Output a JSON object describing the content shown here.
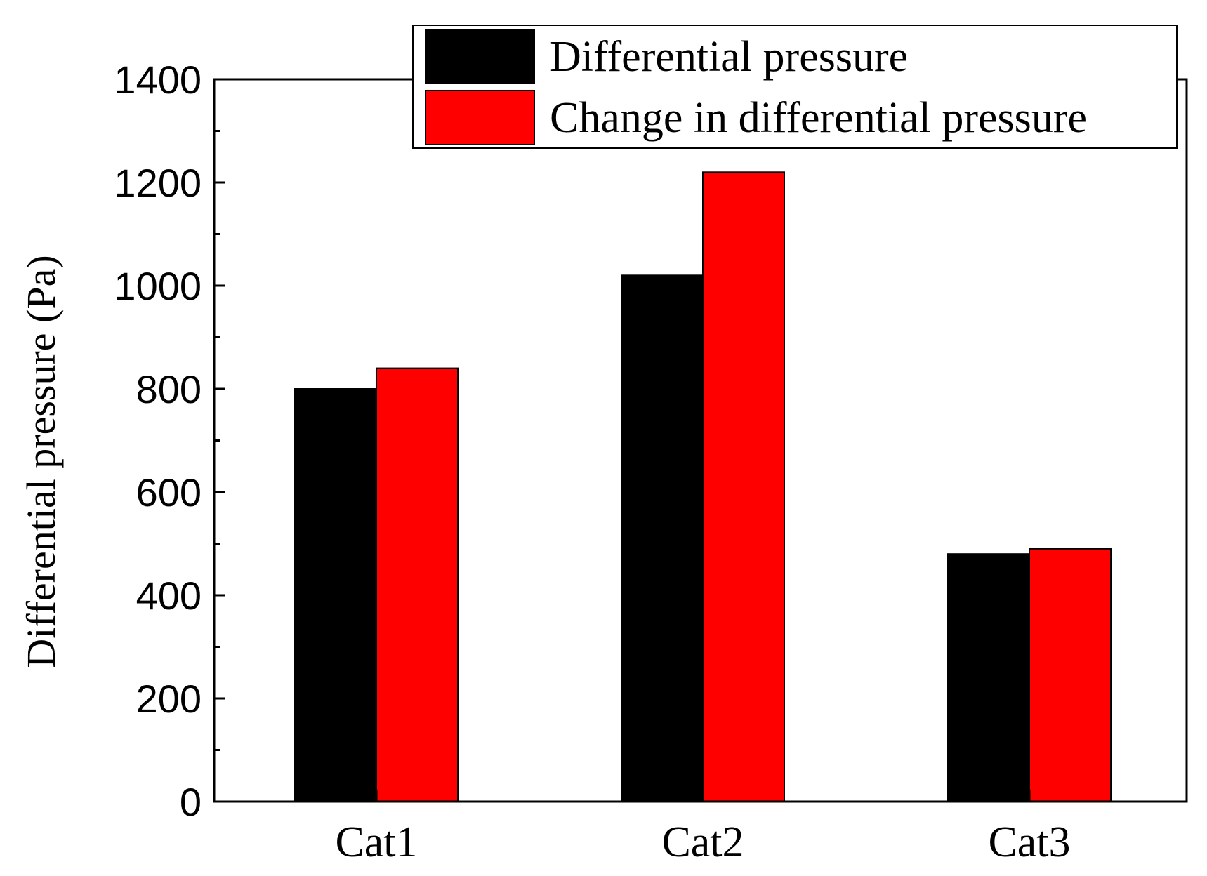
{
  "chart_data": {
    "type": "bar",
    "title": "",
    "xlabel": "",
    "ylabel": "Differential pressure (Pa)",
    "categories": [
      "Cat1",
      "Cat2",
      "Cat3"
    ],
    "series": [
      {
        "name": "Differential pressure",
        "color": "#000000",
        "values": [
          800,
          1020,
          480
        ]
      },
      {
        "name": "Change in differential pressure",
        "color": "#ff0000",
        "values": [
          840,
          1220,
          490
        ]
      }
    ],
    "ylim": [
      0,
      1400
    ],
    "yticks": [
      "0",
      "200",
      "400",
      "600",
      "800",
      "1000",
      "1200",
      "1400"
    ],
    "grid": false,
    "legend_position": "top-right"
  }
}
